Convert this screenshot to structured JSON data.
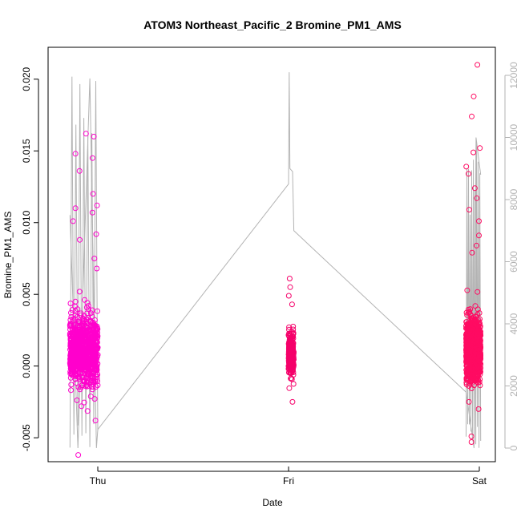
{
  "chart_data": {
    "type": "scatter",
    "title": "ATOM3 Northeast_Pacific_2 Bromine_PM1_AMS",
    "xlabel": "Date",
    "ylabel": "Bromine_PM1_AMS",
    "x_ticks": [
      "Thu",
      "Fri",
      "Sat"
    ],
    "y_ticks": [
      "-0.005",
      "0.000",
      "0.005",
      "0.010",
      "0.015",
      "0.020"
    ],
    "y2_ticks": [
      "0",
      "2000",
      "4000",
      "6000",
      "8000",
      "10000",
      "12000"
    ],
    "ylim": [
      -0.0065,
      0.022
    ],
    "y2lim": [
      0,
      12500
    ],
    "grid": false,
    "colors": {
      "points_day1": "#ff00cc",
      "points_day2": "#f5006a",
      "points_day3": "#ff0b62",
      "altitude_line": "#b3b3b3"
    },
    "series": [
      {
        "axis": "left",
        "clusters": [
          {
            "x_range": [
              "Wed 20:30",
              "Thu 00:00"
            ],
            "color": "#ff00cc",
            "count": 900,
            "center": 0.0011,
            "spread": 0.0018,
            "outliers": [
              -0.0062,
              -0.0038,
              -0.0028,
              0.0068,
              0.0075,
              0.0088,
              0.0092,
              0.0101,
              0.0107,
              0.011,
              0.0112,
              0.012,
              0.0136,
              0.0145,
              0.0148,
              0.016,
              0.0162
            ]
          },
          {
            "x_range": [
              "Fri 00:00",
              "Fri 00:40"
            ],
            "color": "#f5006a",
            "count": 260,
            "center": 0.0008,
            "spread": 0.0012,
            "outliers": [
              -0.0025,
              0.0043,
              0.0049,
              0.0055,
              0.0061
            ]
          },
          {
            "x_range": [
              "Fri 22:20",
              "Sat 00:10"
            ],
            "color": "#ff0b62",
            "count": 1100,
            "center": 0.0012,
            "spread": 0.0016,
            "outliers": [
              -0.0053,
              -0.0049,
              -0.003,
              -0.0025,
              0.0079,
              0.0084,
              0.0091,
              0.0101,
              0.0109,
              0.0117,
              0.0124,
              0.0134,
              0.0139,
              0.0149,
              0.0152,
              0.0174,
              0.0188,
              0.021
            ]
          }
        ]
      },
      {
        "axis": "right",
        "line": true,
        "points": [
          {
            "x": "Wed 20:30",
            "y": 7500
          },
          {
            "x": "Wed 21:30",
            "y": 0
          },
          {
            "x": "Wed 23:00",
            "y": 11900
          },
          {
            "x": "Wed 23:50",
            "y": 0
          },
          {
            "x": "Thu 00:00",
            "y": 600
          },
          {
            "x": "Fri 00:00",
            "y": 8500
          },
          {
            "x": "Fri 00:05",
            "y": 12100
          },
          {
            "x": "Fri 00:10",
            "y": 9000
          },
          {
            "x": "Fri 00:30",
            "y": 8900
          },
          {
            "x": "Fri 00:40",
            "y": 7000
          },
          {
            "x": "Fri 22:20",
            "y": 1800
          },
          {
            "x": "Fri 23:20",
            "y": 0
          },
          {
            "x": "Fri 23:35",
            "y": 10000
          },
          {
            "x": "Sat 00:10",
            "y": 8800
          }
        ]
      }
    ]
  }
}
